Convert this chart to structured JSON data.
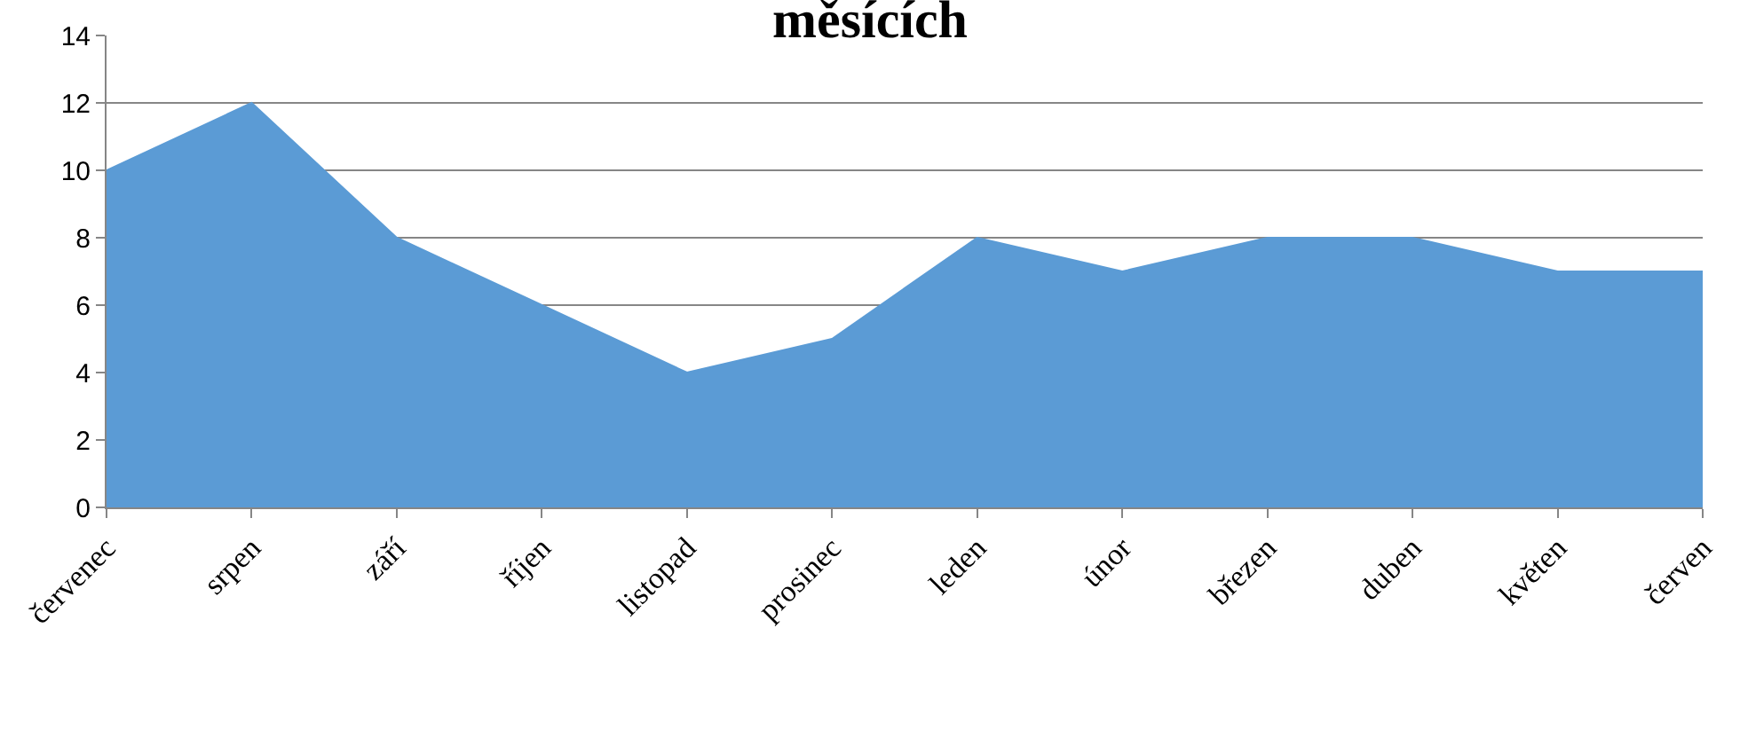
{
  "chart_data": {
    "type": "area",
    "title": "měsících",
    "categories": [
      "červenec",
      "srpen",
      "září",
      "říjen",
      "listopad",
      "prosinec",
      "leden",
      "únor",
      "březen",
      "duben",
      "květen",
      "červen"
    ],
    "values": [
      10,
      12,
      8,
      6,
      4,
      5,
      8,
      7,
      8,
      8,
      7,
      7
    ],
    "color": "#5b9bd5",
    "ylim": [
      0,
      14
    ],
    "yticks": [
      0,
      2,
      4,
      6,
      8,
      10,
      12,
      14
    ],
    "grid": "y"
  }
}
